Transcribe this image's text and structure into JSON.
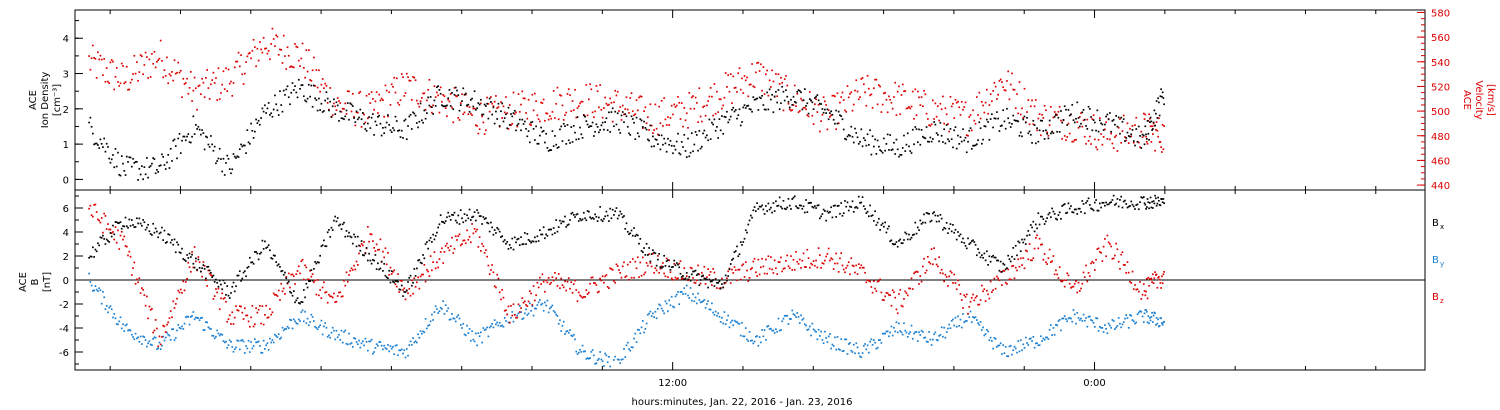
{
  "chart_data": [
    {
      "type": "scatter",
      "panel": "top",
      "left_axis": {
        "label_lines": [
          "ACE",
          "Ion Density",
          "[cm⁻³]"
        ],
        "ylim": [
          -0.3,
          4.8
        ],
        "ticks": [
          "0",
          "1",
          "2",
          "3",
          "4"
        ],
        "tick_values": [
          0,
          1,
          2,
          3,
          4
        ],
        "color": "#000000"
      },
      "right_axis": {
        "label_lines": [
          "ACE",
          "Velocity",
          "[km/s]"
        ],
        "ylim": [
          436,
          582
        ],
        "ticks": [
          "440",
          "460",
          "480",
          "500",
          "520",
          "540",
          "560",
          "580"
        ],
        "tick_values": [
          440,
          460,
          480,
          500,
          520,
          540,
          560,
          580
        ],
        "color": "#dd0000"
      },
      "series": [
        {
          "name": "Ion Density",
          "axis": "left",
          "color": "#000000",
          "x": [
            -4.6,
            -3.6,
            -2.6,
            -1.6,
            -0.6,
            0.4,
            1.4,
            2.4,
            3.4,
            4.4,
            5.4,
            6.4,
            7.4,
            8.4,
            9.4,
            10.4,
            11.4,
            12.4,
            13.4,
            14.4,
            15.4,
            16.4,
            17.4,
            18.4,
            19.4,
            20.4,
            21.4,
            22.4,
            23.4,
            24.4,
            25.4,
            26.0
          ],
          "y": [
            1.5,
            0.3,
            0.3,
            1.5,
            0.3,
            1.9,
            2.6,
            2.0,
            1.6,
            1.4,
            2.4,
            2.2,
            1.7,
            1.1,
            1.5,
            1.7,
            1.2,
            0.9,
            1.6,
            2.1,
            2.4,
            1.9,
            1.1,
            0.9,
            1.4,
            1.1,
            1.7,
            1.3,
            1.9,
            1.6,
            1.1,
            2.5
          ]
        },
        {
          "name": "Velocity",
          "axis": "right",
          "color": "#dd0000",
          "x": [
            -4.6,
            -3.6,
            -2.6,
            -1.6,
            -0.6,
            0.4,
            1.4,
            2.4,
            3.4,
            4.4,
            5.4,
            6.4,
            7.4,
            8.4,
            9.4,
            10.4,
            11.4,
            12.4,
            13.4,
            14.4,
            15.4,
            16.4,
            17.4,
            18.4,
            19.4,
            20.4,
            21.4,
            22.4,
            23.4,
            24.4,
            25.4,
            26.0
          ],
          "y": [
            540,
            525,
            545,
            515,
            525,
            555,
            545,
            505,
            500,
            520,
            510,
            495,
            500,
            505,
            510,
            505,
            495,
            500,
            515,
            530,
            510,
            495,
            515,
            510,
            500,
            495,
            525,
            495,
            490,
            480,
            485,
            480
          ]
        }
      ]
    },
    {
      "type": "scatter",
      "panel": "bottom",
      "left_axis": {
        "label_lines": [
          "ACE",
          "B",
          "[nT]"
        ],
        "ylim": [
          -7.5,
          7.5
        ],
        "ticks": [
          "-6",
          "-4",
          "-2",
          "0",
          "2",
          "4",
          "6"
        ],
        "tick_values": [
          -6,
          -4,
          -2,
          0,
          2,
          4,
          6
        ],
        "color": "#000000"
      },
      "legend": [
        {
          "label": "B",
          "sub": "x",
          "color": "#000000"
        },
        {
          "label": "B",
          "sub": "y",
          "color": "#1a7fd0"
        },
        {
          "label": "B",
          "sub": "z",
          "color": "#dd0000"
        }
      ],
      "series": [
        {
          "name": "Bx",
          "color": "#000000",
          "x": [
            -4.6,
            -3.6,
            -2.6,
            -1.6,
            -0.6,
            0.4,
            1.4,
            2.4,
            3.4,
            4.4,
            5.4,
            6.4,
            7.4,
            8.4,
            9.4,
            10.4,
            11.4,
            12.4,
            13.4,
            14.4,
            15.4,
            16.4,
            17.4,
            18.4,
            19.4,
            20.4,
            21.4,
            22.4,
            23.4,
            24.4,
            25.4,
            26.0
          ],
          "y": [
            2.0,
            5.0,
            4.0,
            1.5,
            -1.0,
            3.0,
            -2.0,
            5.0,
            2.0,
            -1.0,
            5.0,
            5.5,
            3.0,
            4.0,
            5.5,
            5.5,
            2.0,
            0.5,
            -0.5,
            6.0,
            6.5,
            5.5,
            6.5,
            3.0,
            5.5,
            3.0,
            1.0,
            5.0,
            6.0,
            6.5,
            6.5,
            6.5
          ]
        },
        {
          "name": "By",
          "color": "#1a7fd0",
          "x": [
            -4.6,
            -3.6,
            -2.6,
            -1.6,
            -0.6,
            0.4,
            1.4,
            2.4,
            3.4,
            4.4,
            5.4,
            6.4,
            7.4,
            8.4,
            9.4,
            10.4,
            11.4,
            12.4,
            13.4,
            14.4,
            15.4,
            16.4,
            17.4,
            18.4,
            19.4,
            20.4,
            21.4,
            22.4,
            23.4,
            24.4,
            25.4,
            26.0
          ],
          "y": [
            0.0,
            -4.0,
            -5.5,
            -3.0,
            -5.5,
            -5.5,
            -3.0,
            -4.5,
            -5.5,
            -6.0,
            -2.0,
            -5.0,
            -3.0,
            -2.0,
            -6.0,
            -7.0,
            -3.0,
            -1.0,
            -3.0,
            -5.0,
            -3.0,
            -5.0,
            -6.0,
            -4.0,
            -5.0,
            -3.0,
            -6.0,
            -5.0,
            -3.0,
            -4.0,
            -3.0,
            -3.5
          ]
        },
        {
          "name": "Bz",
          "color": "#dd0000",
          "x": [
            -4.6,
            -3.6,
            -2.6,
            -1.6,
            -0.6,
            0.4,
            1.4,
            2.4,
            3.4,
            4.4,
            5.4,
            6.4,
            7.4,
            8.4,
            9.4,
            10.4,
            11.4,
            12.4,
            13.4,
            14.4,
            15.4,
            16.4,
            17.4,
            18.4,
            19.4,
            20.4,
            21.4,
            22.4,
            23.4,
            24.4,
            25.4,
            26.0
          ],
          "y": [
            6.0,
            3.0,
            -5.0,
            2.0,
            -3.0,
            -3.0,
            1.0,
            -2.0,
            4.0,
            -1.0,
            2.0,
            4.0,
            -3.0,
            0.0,
            -1.0,
            0.5,
            1.5,
            0.5,
            0.0,
            1.0,
            1.5,
            2.0,
            0.5,
            -2.0,
            2.0,
            -2.0,
            0.0,
            3.0,
            -1.0,
            3.0,
            -1.0,
            0.5
          ]
        }
      ]
    }
  ],
  "x_axis": {
    "xlim": [
      -5.0,
      33.4
    ],
    "tick_labels": [
      {
        "hours": 12,
        "label": "12:00"
      },
      {
        "hours": 24,
        "label": "0:00"
      }
    ],
    "minor_tick_hours": [
      -4,
      -2,
      0,
      2,
      4,
      6,
      8,
      10,
      14,
      16,
      18,
      20,
      22,
      26,
      28,
      30,
      32
    ],
    "xlabel": "hours:minutes, Jan. 22, 2016 - Jan. 23, 2016"
  }
}
